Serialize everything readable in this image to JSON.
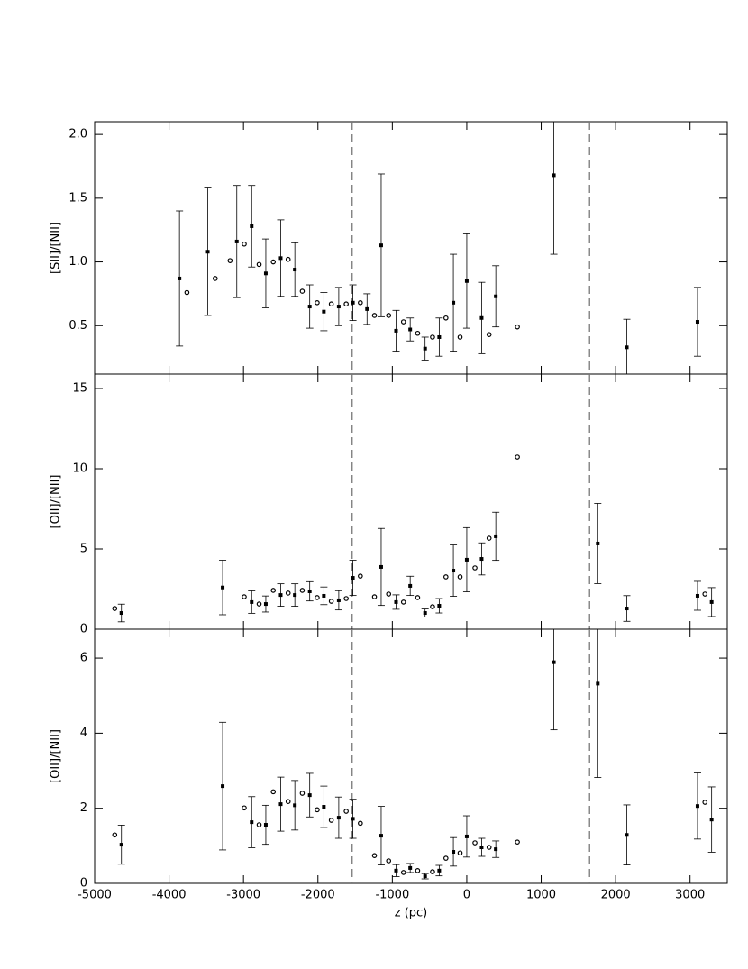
{
  "chart_data": [
    {
      "type": "scatter",
      "ylabel": "[SII]/[NII]",
      "show_xtick_labels": false,
      "color": "#000000",
      "x": [
        -3860,
        -3760,
        -3480,
        -3380,
        -3180,
        -3090,
        -2990,
        -2890,
        -2790,
        -2700,
        -2600,
        -2500,
        -2400,
        -2310,
        -2210,
        -2110,
        -2010,
        -1920,
        -1820,
        -1720,
        -1620,
        -1530,
        -1430,
        -1340,
        -1240,
        -1150,
        -1050,
        -950,
        -850,
        -760,
        -660,
        -560,
        -460,
        -370,
        -280,
        -180,
        -90,
        0,
        200,
        300,
        390,
        680,
        1170,
        2150,
        3100
      ],
      "values": [
        0.87,
        0.76,
        1.08,
        0.87,
        1.01,
        1.16,
        1.14,
        1.28,
        0.98,
        0.91,
        1.0,
        1.03,
        1.02,
        0.94,
        0.77,
        0.65,
        0.68,
        0.61,
        0.67,
        0.65,
        0.67,
        0.68,
        0.68,
        0.63,
        0.58,
        1.13,
        0.58,
        0.46,
        0.53,
        0.47,
        0.44,
        0.32,
        0.41,
        0.41,
        0.56,
        0.68,
        0.41,
        0.85,
        0.56,
        0.43,
        0.73,
        0.49,
        1.68,
        0.33,
        0.53
      ],
      "errors": [
        0.53,
        null,
        0.5,
        null,
        null,
        0.44,
        null,
        0.32,
        null,
        0.27,
        null,
        0.3,
        null,
        0.21,
        null,
        0.17,
        null,
        0.15,
        null,
        0.15,
        null,
        0.14,
        null,
        0.12,
        null,
        0.56,
        null,
        0.16,
        null,
        0.09,
        null,
        0.09,
        null,
        0.15,
        null,
        0.38,
        null,
        0.37,
        0.28,
        null,
        0.24,
        null,
        0.62,
        0.22,
        0.27
      ],
      "xlim": [
        -5000,
        3500
      ],
      "xticks": [
        -5000,
        -4000,
        -3000,
        -2000,
        -1000,
        0,
        1000,
        2000,
        3000
      ],
      "ylim": [
        0.12,
        2.1
      ],
      "yticks": [
        0.5,
        {
          "value": 1,
          "label": "1.0"
        },
        1.5,
        {
          "value": 2,
          "label": "2.0"
        }
      ],
      "vlines": [
        -1540,
        1650
      ]
    },
    {
      "type": "scatter",
      "ylabel": "[OII]/[NII]",
      "show_xtick_labels": false,
      "color": "#000000",
      "x": [
        -4730,
        -4640,
        -3280,
        -2990,
        -2890,
        -2790,
        -2700,
        -2600,
        -2500,
        -2400,
        -2310,
        -2210,
        -2110,
        -2010,
        -1920,
        -1820,
        -1720,
        -1620,
        -1530,
        -1430,
        -1240,
        -1150,
        -1050,
        -950,
        -850,
        -760,
        -660,
        -560,
        -460,
        -370,
        -280,
        -180,
        -90,
        0,
        110,
        200,
        300,
        390,
        680,
        1760,
        2150,
        3100,
        3200,
        3290
      ],
      "values": [
        1.29,
        1.01,
        2.6,
        2.02,
        1.69,
        1.57,
        1.57,
        2.42,
        2.13,
        2.25,
        2.13,
        2.42,
        2.36,
        1.97,
        2.08,
        1.74,
        1.8,
        1.91,
        3.2,
        3.31,
        2.02,
        3.88,
        2.19,
        1.69,
        1.69,
        2.7,
        1.97,
        1.01,
        1.4,
        1.46,
        3.26,
        3.65,
        3.26,
        4.33,
        3.82,
        4.38,
        5.67,
        5.79,
        10.73,
        5.34,
        1.29,
        2.08,
        2.19,
        1.69
      ],
      "errors": [
        null,
        0.55,
        1.7,
        null,
        0.7,
        null,
        0.5,
        null,
        0.7,
        null,
        0.7,
        null,
        0.6,
        null,
        0.55,
        null,
        0.6,
        null,
        1.1,
        null,
        null,
        2.4,
        null,
        0.45,
        null,
        0.6,
        null,
        0.25,
        null,
        0.45,
        null,
        1.6,
        null,
        2.0,
        null,
        1.0,
        null,
        1.5,
        null,
        2.5,
        0.8,
        0.9,
        null,
        0.9
      ],
      "xlim": [
        -5000,
        3500
      ],
      "xticks": [
        -5000,
        -4000,
        -3000,
        -2000,
        -1000,
        0,
        1000,
        2000,
        3000
      ],
      "ylim": [
        0,
        15.9
      ],
      "yticks": [
        0,
        5,
        10,
        15
      ],
      "vlines": [
        -1540,
        1650
      ]
    },
    {
      "type": "scatter",
      "ylabel": "[OII]/[NII]",
      "xlabel": "z (pc)",
      "show_xtick_labels": true,
      "color": "#000000",
      "x": [
        -4730,
        -4640,
        -3280,
        -2990,
        -2890,
        -2790,
        -2700,
        -2600,
        -2500,
        -2400,
        -2310,
        -2210,
        -2110,
        -2010,
        -1920,
        -1820,
        -1720,
        -1620,
        -1530,
        -1430,
        -1240,
        -1150,
        -1050,
        -950,
        -850,
        -760,
        -660,
        -560,
        -460,
        -370,
        -280,
        -180,
        -90,
        0,
        110,
        200,
        300,
        390,
        680,
        1170,
        1760,
        2150,
        3100,
        3200,
        3290
      ],
      "values": [
        1.29,
        1.03,
        2.59,
        2.01,
        1.63,
        1.56,
        1.56,
        2.44,
        2.11,
        2.18,
        2.08,
        2.4,
        2.35,
        1.96,
        2.04,
        1.68,
        1.75,
        1.92,
        1.72,
        1.6,
        0.74,
        1.27,
        0.6,
        0.34,
        0.29,
        0.41,
        0.34,
        0.19,
        0.31,
        0.34,
        0.67,
        0.84,
        0.81,
        1.25,
        1.08,
        0.96,
        0.96,
        0.91,
        1.1,
        5.89,
        5.32,
        1.29,
        2.06,
        2.16,
        1.7
      ],
      "errors": [
        null,
        0.52,
        1.7,
        null,
        0.68,
        null,
        0.52,
        null,
        0.72,
        null,
        0.66,
        null,
        0.58,
        null,
        0.55,
        null,
        0.55,
        null,
        0.52,
        null,
        null,
        0.78,
        null,
        0.16,
        null,
        0.12,
        null,
        0.07,
        null,
        0.14,
        null,
        0.38,
        null,
        0.55,
        null,
        0.24,
        null,
        0.22,
        null,
        1.8,
        2.5,
        0.8,
        0.88,
        null,
        0.87
      ],
      "xlim": [
        -5000,
        3500
      ],
      "xticks": [
        -5000,
        -4000,
        -3000,
        -2000,
        -1000,
        0,
        1000,
        2000,
        3000
      ],
      "ylim": [
        0,
        6.77
      ],
      "yticks": [
        0,
        2,
        4,
        6
      ],
      "vlines": [
        -1540,
        1650
      ]
    }
  ]
}
